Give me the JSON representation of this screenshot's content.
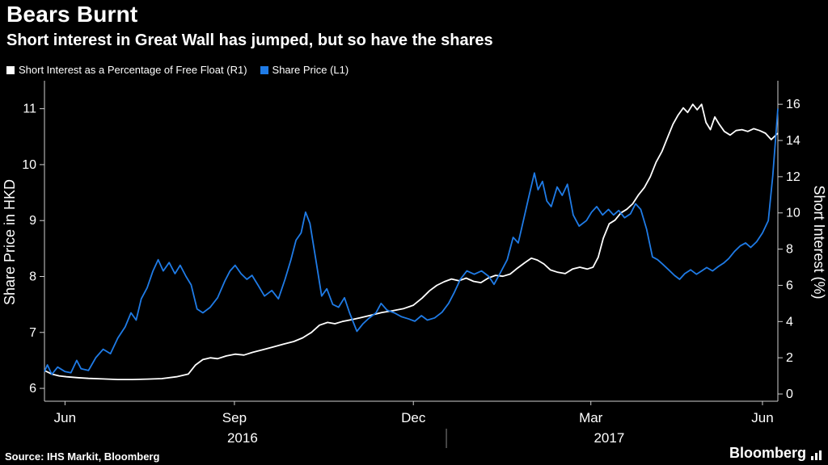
{
  "header": {
    "title": "Bears Burnt",
    "subtitle": "Short interest in Great Wall has jumped, but so have the shares"
  },
  "legend": {
    "items": [
      {
        "label": "Short Interest as a Percentage of Free Float (R1)",
        "color": "#ffffff"
      },
      {
        "label": "Share Price (L1)",
        "color": "#1f7be6"
      }
    ]
  },
  "footer": {
    "source": "Source: IHS Markit, Bloomberg",
    "brand": "Bloomberg"
  },
  "colors": {
    "background": "#000000",
    "axis": "#cfcfcf",
    "text": "#ffffff",
    "share_price_line": "#1f7be6",
    "short_interest_line": "#ffffff"
  },
  "chart_data": {
    "type": "line",
    "title": "Bears Burnt",
    "subtitle": "Short interest in Great Wall has jumped, but so have the shares",
    "grid": false,
    "legend_position": "top-left",
    "left_axis": {
      "label": "Share Price in HKD",
      "ticks": [
        6,
        7,
        8,
        9,
        10,
        11
      ],
      "range": [
        5.77,
        11.5
      ]
    },
    "right_axis": {
      "label": "Short Interest (%)",
      "ticks": [
        0,
        2,
        4,
        6,
        8,
        10,
        12,
        14,
        16
      ],
      "range": [
        -0.4,
        17.3
      ]
    },
    "x_axis": {
      "months": [
        {
          "label": "Jun",
          "x": 0.028
        },
        {
          "label": "Sep",
          "x": 0.259
        },
        {
          "label": "Dec",
          "x": 0.503
        },
        {
          "label": "Mar",
          "x": 0.745
        },
        {
          "label": "Jun",
          "x": 0.979
        }
      ],
      "years": [
        {
          "label": "2016",
          "x": 0.27
        },
        {
          "label": "2017",
          "x": 0.77
        }
      ],
      "year_divider_x": 0.548
    },
    "series": [
      {
        "name": "Short Interest as a Percentage of Free Float (R1)",
        "axis": "right",
        "color": "#ffffff",
        "points": [
          [
            0.0,
            1.3
          ],
          [
            0.01,
            1.1
          ],
          [
            0.02,
            1.0
          ],
          [
            0.03,
            0.95
          ],
          [
            0.045,
            0.9
          ],
          [
            0.06,
            0.86
          ],
          [
            0.08,
            0.83
          ],
          [
            0.1,
            0.8
          ],
          [
            0.12,
            0.8
          ],
          [
            0.14,
            0.82
          ],
          [
            0.16,
            0.85
          ],
          [
            0.18,
            0.95
          ],
          [
            0.196,
            1.1
          ],
          [
            0.206,
            1.6
          ],
          [
            0.216,
            1.9
          ],
          [
            0.226,
            2.0
          ],
          [
            0.236,
            1.95
          ],
          [
            0.248,
            2.1
          ],
          [
            0.26,
            2.2
          ],
          [
            0.272,
            2.15
          ],
          [
            0.284,
            2.3
          ],
          [
            0.298,
            2.45
          ],
          [
            0.312,
            2.6
          ],
          [
            0.326,
            2.75
          ],
          [
            0.34,
            2.9
          ],
          [
            0.352,
            3.1
          ],
          [
            0.364,
            3.4
          ],
          [
            0.375,
            3.8
          ],
          [
            0.386,
            3.95
          ],
          [
            0.396,
            3.88
          ],
          [
            0.406,
            4.0
          ],
          [
            0.418,
            4.1
          ],
          [
            0.43,
            4.2
          ],
          [
            0.445,
            4.35
          ],
          [
            0.46,
            4.5
          ],
          [
            0.475,
            4.6
          ],
          [
            0.49,
            4.72
          ],
          [
            0.503,
            4.9
          ],
          [
            0.515,
            5.3
          ],
          [
            0.525,
            5.7
          ],
          [
            0.535,
            6.0
          ],
          [
            0.545,
            6.2
          ],
          [
            0.555,
            6.35
          ],
          [
            0.565,
            6.25
          ],
          [
            0.575,
            6.4
          ],
          [
            0.585,
            6.22
          ],
          [
            0.595,
            6.15
          ],
          [
            0.605,
            6.4
          ],
          [
            0.615,
            6.55
          ],
          [
            0.625,
            6.5
          ],
          [
            0.635,
            6.62
          ],
          [
            0.645,
            6.95
          ],
          [
            0.655,
            7.25
          ],
          [
            0.664,
            7.5
          ],
          [
            0.672,
            7.4
          ],
          [
            0.681,
            7.18
          ],
          [
            0.69,
            6.85
          ],
          [
            0.7,
            6.72
          ],
          [
            0.71,
            6.65
          ],
          [
            0.72,
            6.9
          ],
          [
            0.73,
            7.0
          ],
          [
            0.74,
            6.9
          ],
          [
            0.748,
            7.0
          ],
          [
            0.755,
            7.55
          ],
          [
            0.762,
            8.6
          ],
          [
            0.77,
            9.4
          ],
          [
            0.778,
            9.6
          ],
          [
            0.786,
            10.0
          ],
          [
            0.794,
            10.2
          ],
          [
            0.802,
            10.5
          ],
          [
            0.81,
            11.0
          ],
          [
            0.818,
            11.4
          ],
          [
            0.826,
            12.0
          ],
          [
            0.834,
            12.8
          ],
          [
            0.842,
            13.4
          ],
          [
            0.85,
            14.2
          ],
          [
            0.857,
            14.9
          ],
          [
            0.864,
            15.4
          ],
          [
            0.871,
            15.8
          ],
          [
            0.877,
            15.55
          ],
          [
            0.884,
            16.0
          ],
          [
            0.89,
            15.7
          ],
          [
            0.896,
            16.0
          ],
          [
            0.902,
            15.0
          ],
          [
            0.908,
            14.6
          ],
          [
            0.914,
            15.3
          ],
          [
            0.92,
            14.9
          ],
          [
            0.927,
            14.5
          ],
          [
            0.935,
            14.3
          ],
          [
            0.943,
            14.55
          ],
          [
            0.951,
            14.6
          ],
          [
            0.959,
            14.5
          ],
          [
            0.967,
            14.65
          ],
          [
            0.975,
            14.55
          ],
          [
            0.983,
            14.4
          ],
          [
            0.991,
            14.05
          ],
          [
            1.0,
            14.4
          ]
        ]
      },
      {
        "name": "Share Price (L1)",
        "axis": "left",
        "color": "#1f7be6",
        "points": [
          [
            0.0,
            6.3
          ],
          [
            0.004,
            6.42
          ],
          [
            0.01,
            6.25
          ],
          [
            0.018,
            6.38
          ],
          [
            0.028,
            6.3
          ],
          [
            0.036,
            6.28
          ],
          [
            0.044,
            6.5
          ],
          [
            0.05,
            6.35
          ],
          [
            0.06,
            6.32
          ],
          [
            0.07,
            6.55
          ],
          [
            0.08,
            6.7
          ],
          [
            0.09,
            6.62
          ],
          [
            0.1,
            6.9
          ],
          [
            0.11,
            7.1
          ],
          [
            0.118,
            7.35
          ],
          [
            0.125,
            7.22
          ],
          [
            0.132,
            7.6
          ],
          [
            0.14,
            7.8
          ],
          [
            0.148,
            8.1
          ],
          [
            0.155,
            8.3
          ],
          [
            0.162,
            8.1
          ],
          [
            0.17,
            8.25
          ],
          [
            0.178,
            8.05
          ],
          [
            0.185,
            8.2
          ],
          [
            0.193,
            8.0
          ],
          [
            0.2,
            7.85
          ],
          [
            0.208,
            7.42
          ],
          [
            0.216,
            7.35
          ],
          [
            0.226,
            7.45
          ],
          [
            0.236,
            7.62
          ],
          [
            0.246,
            7.92
          ],
          [
            0.253,
            8.1
          ],
          [
            0.26,
            8.2
          ],
          [
            0.268,
            8.05
          ],
          [
            0.276,
            7.95
          ],
          [
            0.283,
            8.02
          ],
          [
            0.291,
            7.85
          ],
          [
            0.3,
            7.65
          ],
          [
            0.31,
            7.75
          ],
          [
            0.319,
            7.6
          ],
          [
            0.328,
            7.95
          ],
          [
            0.336,
            8.3
          ],
          [
            0.343,
            8.65
          ],
          [
            0.35,
            8.78
          ],
          [
            0.356,
            9.15
          ],
          [
            0.362,
            8.95
          ],
          [
            0.37,
            8.3
          ],
          [
            0.378,
            7.65
          ],
          [
            0.385,
            7.78
          ],
          [
            0.393,
            7.5
          ],
          [
            0.401,
            7.45
          ],
          [
            0.409,
            7.62
          ],
          [
            0.416,
            7.35
          ],
          [
            0.426,
            7.02
          ],
          [
            0.434,
            7.15
          ],
          [
            0.442,
            7.25
          ],
          [
            0.452,
            7.35
          ],
          [
            0.459,
            7.52
          ],
          [
            0.467,
            7.4
          ],
          [
            0.477,
            7.35
          ],
          [
            0.487,
            7.28
          ],
          [
            0.497,
            7.24
          ],
          [
            0.505,
            7.2
          ],
          [
            0.514,
            7.3
          ],
          [
            0.522,
            7.22
          ],
          [
            0.532,
            7.26
          ],
          [
            0.542,
            7.36
          ],
          [
            0.551,
            7.52
          ],
          [
            0.559,
            7.72
          ],
          [
            0.567,
            7.95
          ],
          [
            0.576,
            8.1
          ],
          [
            0.586,
            8.04
          ],
          [
            0.596,
            8.1
          ],
          [
            0.606,
            8.0
          ],
          [
            0.613,
            7.86
          ],
          [
            0.621,
            8.05
          ],
          [
            0.631,
            8.3
          ],
          [
            0.639,
            8.7
          ],
          [
            0.646,
            8.6
          ],
          [
            0.653,
            9.0
          ],
          [
            0.66,
            9.4
          ],
          [
            0.668,
            9.85
          ],
          [
            0.673,
            9.55
          ],
          [
            0.679,
            9.7
          ],
          [
            0.685,
            9.35
          ],
          [
            0.691,
            9.25
          ],
          [
            0.699,
            9.6
          ],
          [
            0.706,
            9.45
          ],
          [
            0.713,
            9.65
          ],
          [
            0.721,
            9.1
          ],
          [
            0.729,
            8.9
          ],
          [
            0.739,
            9.0
          ],
          [
            0.746,
            9.15
          ],
          [
            0.753,
            9.25
          ],
          [
            0.761,
            9.1
          ],
          [
            0.769,
            9.2
          ],
          [
            0.776,
            9.1
          ],
          [
            0.783,
            9.18
          ],
          [
            0.791,
            9.05
          ],
          [
            0.799,
            9.12
          ],
          [
            0.806,
            9.3
          ],
          [
            0.813,
            9.2
          ],
          [
            0.821,
            8.85
          ],
          [
            0.829,
            8.35
          ],
          [
            0.836,
            8.3
          ],
          [
            0.843,
            8.22
          ],
          [
            0.851,
            8.12
          ],
          [
            0.859,
            8.02
          ],
          [
            0.866,
            7.95
          ],
          [
            0.873,
            8.05
          ],
          [
            0.881,
            8.12
          ],
          [
            0.889,
            8.04
          ],
          [
            0.896,
            8.1
          ],
          [
            0.903,
            8.16
          ],
          [
            0.911,
            8.1
          ],
          [
            0.919,
            8.18
          ],
          [
            0.926,
            8.24
          ],
          [
            0.933,
            8.32
          ],
          [
            0.941,
            8.45
          ],
          [
            0.949,
            8.55
          ],
          [
            0.956,
            8.6
          ],
          [
            0.963,
            8.52
          ],
          [
            0.971,
            8.62
          ],
          [
            0.979,
            8.78
          ],
          [
            0.987,
            9.0
          ],
          [
            0.993,
            9.8
          ],
          [
            1.0,
            11.0
          ]
        ]
      }
    ]
  }
}
